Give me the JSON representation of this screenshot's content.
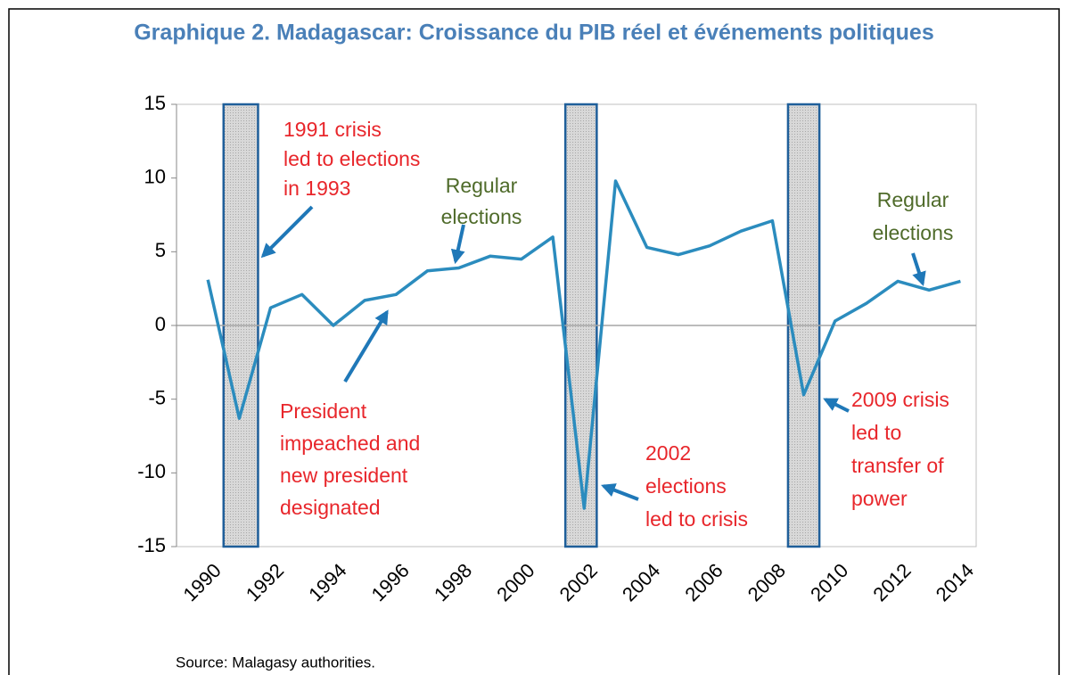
{
  "chart_data": {
    "type": "line",
    "title": "Graphique 2. Madagascar: Croissance du PIB réel et événements politiques",
    "source": "Source: Malagasy authorities.",
    "x": [
      1990,
      1991,
      1992,
      1993,
      1994,
      1995,
      1996,
      1997,
      1998,
      1999,
      2000,
      2001,
      2002,
      2003,
      2004,
      2005,
      2006,
      2007,
      2008,
      2009,
      2010,
      2011,
      2012,
      2013,
      2014
    ],
    "series": [
      {
        "color": "#2b8cbe",
        "values": [
          3.1,
          -6.3,
          1.2,
          2.1,
          0.0,
          1.7,
          2.1,
          3.7,
          3.9,
          4.7,
          4.5,
          6.0,
          -12.4,
          9.8,
          5.3,
          4.8,
          5.4,
          6.4,
          7.1,
          -4.7,
          0.3,
          1.5,
          3.0,
          2.4,
          3.0
        ]
      }
    ],
    "xlim": [
      1989,
      2014.5
    ],
    "xticks": [
      1990,
      1992,
      1994,
      1996,
      1998,
      2000,
      2002,
      2004,
      2006,
      2008,
      2010,
      2012,
      2014
    ],
    "ylim": [
      -15,
      15
    ],
    "yticks": [
      -15,
      -10,
      -5,
      0,
      5,
      10,
      15
    ],
    "shaded_periods": [
      {
        "start": 1990.5,
        "end": 1991.6
      },
      {
        "start": 2001.4,
        "end": 2002.4
      },
      {
        "start": 2008.5,
        "end": 2009.5
      }
    ],
    "annotations": [
      {
        "lines": [
          "1991 crisis",
          "led to elections",
          "in 1993"
        ],
        "color": "#e8262b"
      },
      {
        "lines": [
          "Regular",
          "elections"
        ],
        "color": "#4f6b2a"
      },
      {
        "lines": [
          "President",
          "impeached and",
          "new president",
          "designated"
        ],
        "color": "#e8262b"
      },
      {
        "lines": [
          "2002",
          "elections",
          "led to crisis"
        ],
        "color": "#e8262b"
      },
      {
        "lines": [
          "Regular",
          "elections"
        ],
        "color": "#4f6b2a"
      },
      {
        "lines": [
          "2009 crisis",
          "led to",
          "transfer of",
          "power"
        ],
        "color": "#e8262b"
      }
    ]
  }
}
